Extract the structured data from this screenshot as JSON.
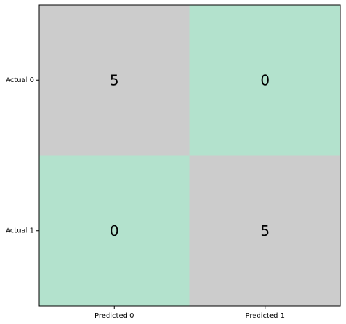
{
  "chart_data": {
    "type": "heatmap",
    "title": "",
    "xlabel": "",
    "ylabel": "",
    "x_categories": [
      "Predicted 0",
      "Predicted 1"
    ],
    "y_categories": [
      "Actual 0",
      "Actual 1"
    ],
    "values": [
      [
        5,
        0
      ],
      [
        0,
        5
      ]
    ],
    "cell_colors": [
      [
        "#cccccc",
        "#b3e2cd"
      ],
      [
        "#b3e2cd",
        "#cccccc"
      ]
    ],
    "grid": false,
    "legend": "none"
  }
}
